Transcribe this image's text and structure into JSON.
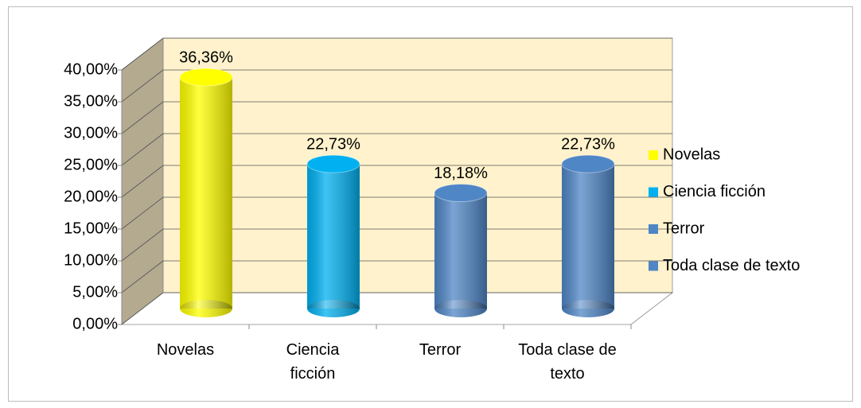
{
  "chart_data": {
    "type": "bar3d",
    "categories": [
      "Novelas",
      "Ciencia ficción",
      "Terror",
      "Toda clase de texto"
    ],
    "values": [
      36.36,
      22.73,
      18.18,
      22.73
    ],
    "value_labels": [
      "36,36%",
      "22,73%",
      "18,18%",
      "22,73%"
    ],
    "colors": [
      "#ffff00",
      "#00b0f0",
      "#4f86c6",
      "#4f86c6"
    ],
    "ylim": [
      0,
      40
    ],
    "yticks": [
      {
        "value": 0,
        "label": "0,00%"
      },
      {
        "value": 5,
        "label": "5,00%"
      },
      {
        "value": 10,
        "label": "10,00%"
      },
      {
        "value": 15,
        "label": "15,00%"
      },
      {
        "value": 20,
        "label": "20,00%"
      },
      {
        "value": 25,
        "label": "25,00%"
      },
      {
        "value": 30,
        "label": "30,00%"
      },
      {
        "value": 35,
        "label": "35,00%"
      },
      {
        "value": 40,
        "label": "40,00%"
      }
    ],
    "grid": true,
    "legend": "right"
  }
}
